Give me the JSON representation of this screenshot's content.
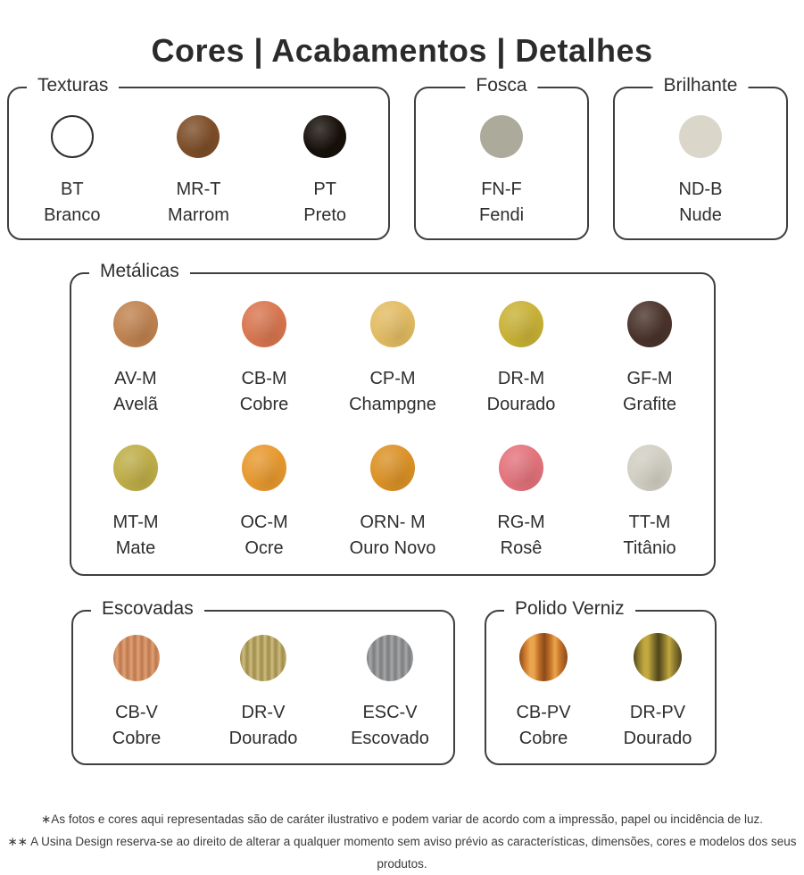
{
  "page": {
    "title": "Cores | Acabamentos | Detalhes",
    "background": "#ffffff",
    "text_color": "#2e2e2e",
    "border_color": "#3f3f3f"
  },
  "sections": {
    "texturas": {
      "label": "Texturas",
      "swatches": [
        {
          "code": "BT",
          "name": "Branco",
          "color": "#ffffff",
          "style": "outline"
        },
        {
          "code": "MR-T",
          "name": "Marrom",
          "color": "#7d4e28",
          "style": "texture"
        },
        {
          "code": "PT",
          "name": "Preto",
          "color": "#17100a",
          "style": "texture"
        }
      ]
    },
    "fosca": {
      "label": "Fosca",
      "swatches": [
        {
          "code": "FN-F",
          "name": "Fendi",
          "color": "#abaa9b",
          "style": "flat"
        }
      ]
    },
    "brilhante": {
      "label": "Brilhante",
      "swatches": [
        {
          "code": "ND-B",
          "name": "Nude",
          "color": "#dad6ca",
          "style": "flat"
        }
      ]
    },
    "metalicas": {
      "label": "Metálicas",
      "swatches": [
        {
          "code": "AV-M",
          "name": "Avelã",
          "color": "#c08350",
          "style": "texture"
        },
        {
          "code": "CB-M",
          "name": "Cobre",
          "color": "#d9764f",
          "style": "texture"
        },
        {
          "code": "CP-M",
          "name": "Champgne",
          "color": "#e3bc63",
          "style": "texture"
        },
        {
          "code": "DR-M",
          "name": "Dourado",
          "color": "#c9b236",
          "style": "texture"
        },
        {
          "code": "GF-M",
          "name": "Grafite",
          "color": "#4a332b",
          "style": "texture"
        },
        {
          "code": "MT-M",
          "name": "Mate",
          "color": "#bfae48",
          "style": "texture"
        },
        {
          "code": "OC-M",
          "name": "Ocre",
          "color": "#e8992e",
          "style": "texture"
        },
        {
          "code": "ORN- M",
          "name": "Ouro Novo",
          "color": "#dc9226",
          "style": "texture"
        },
        {
          "code": "RG-M",
          "name": "Rosê",
          "color": "#e4737c",
          "style": "texture"
        },
        {
          "code": "TT-M",
          "name": "Titânio",
          "color": "#d2cfc3",
          "style": "texture"
        }
      ]
    },
    "escovadas": {
      "label": "Escovadas",
      "swatches": [
        {
          "code": "CB-V",
          "name": "Cobre",
          "color": "#cd8a5e",
          "color_light": "#dfa275",
          "color_dark": "#bd7850",
          "style": "brushed"
        },
        {
          "code": "DR-V",
          "name": "Dourado",
          "color": "#b5a260",
          "color_light": "#cbbc80",
          "color_dark": "#9d8c4e",
          "style": "brushed"
        },
        {
          "code": "ESC-V",
          "name": "Escovado",
          "color": "#8e9092",
          "color_light": "#a6a8aa",
          "color_dark": "#7b7d7f",
          "style": "brushed"
        }
      ]
    },
    "polido_verniz": {
      "label": "Polido Verniz",
      "swatches": [
        {
          "code": "CB-PV",
          "name": "Cobre",
          "color": "#c47227",
          "color_light": "#eaa44e",
          "color_dark": "#8a4a1a",
          "style": "polished"
        },
        {
          "code": "DR-PV",
          "name": "Dourado",
          "color": "#8a7a30",
          "color_light": "#c3a83e",
          "color_dark": "#4f4418",
          "style": "polished"
        }
      ]
    }
  },
  "footer": {
    "line1": "∗As fotos e cores aqui representadas são de caráter ilustrativo e podem variar de acordo com a impressão, papel ou incidência de luz.",
    "line2": "∗∗ A Usina Design reserva-se ao direito de alterar a qualquer momento sem aviso prévio as características, dimensões, cores e modelos dos seus produtos."
  }
}
